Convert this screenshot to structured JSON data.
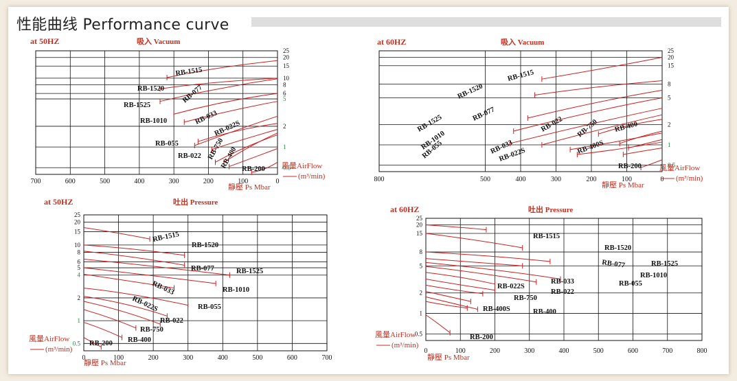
{
  "page": {
    "title": "性能曲线 Performance curve"
  },
  "colors": {
    "curve": "#cc1f1f",
    "grid": "#111111",
    "freq_label": "#c23020",
    "mode_label": "#c23020",
    "green_text": "#1b8a3c",
    "red_text": "#c23020",
    "model_label": "#111111"
  },
  "chart_data": [
    {
      "id": "vac50",
      "type": "line",
      "freq_label": "at 50HZ",
      "mode_label": "吸入 Vacuum",
      "x_scale": "linear-reversed",
      "xlim": [
        0,
        700
      ],
      "x_ticks": [
        "700",
        "600",
        "500",
        "400",
        "300",
        "200",
        "100",
        "0"
      ],
      "y_scale": "log",
      "ylim": [
        0.4,
        25
      ],
      "y_ticks_black": [
        "25",
        "20",
        "15",
        "10",
        "8",
        "6",
        "2"
      ],
      "y_ticks_green": [
        "5",
        "1",
        "0.5"
      ],
      "airflow_label": "風量AirFlow",
      "airflow_unit": "(m³/min)",
      "pressure_label": "靜壓 Ps Mbar",
      "series": [
        {
          "name": "RB-1515",
          "points": [
            [
              0,
              18
            ],
            [
              180,
              14.5
            ],
            [
              320,
              10.2
            ]
          ]
        },
        {
          "name": "RB-1520",
          "points": [
            [
              0,
              10
            ],
            [
              200,
              8.8
            ],
            [
              340,
              7
            ]
          ]
        },
        {
          "name": "RB-1525",
          "points": [
            [
              0,
              9.8
            ],
            [
              80,
              8.5
            ],
            [
              240,
              6
            ],
            [
              340,
              4.6
            ]
          ]
        },
        {
          "name": "RB-077",
          "points": [
            [
              0,
              6
            ],
            [
              150,
              4.8
            ],
            [
              300,
              3
            ]
          ]
        },
        {
          "name": "RB-1010",
          "points": [
            [
              0,
              4.6
            ],
            [
              130,
              3.5
            ],
            [
              270,
              2.3
            ]
          ]
        },
        {
          "name": "RB-033",
          "points": [
            [
              0,
              2.2
            ],
            [
              120,
              1.8
            ],
            [
              230,
              1.2
            ]
          ]
        },
        {
          "name": "RB-022S",
          "points": [
            [
              0,
              1.8
            ],
            [
              100,
              1.3
            ],
            [
              190,
              0.92
            ]
          ]
        },
        {
          "name": "RB-055",
          "points": [
            [
              0,
              2.8
            ],
            [
              90,
              2.0
            ],
            [
              240,
              1.05
            ]
          ]
        },
        {
          "name": "RB-022",
          "points": [
            [
              0,
              1.5
            ],
            [
              100,
              1.0
            ],
            [
              180,
              0.6
            ]
          ]
        },
        {
          "name": "RB-750",
          "points": [
            [
              0,
              1.6
            ],
            [
              80,
              1.05
            ],
            [
              155,
              0.6
            ]
          ]
        },
        {
          "name": "RB-400",
          "points": [
            [
              0,
              0.95
            ],
            [
              70,
              0.7
            ],
            [
              140,
              0.52
            ]
          ]
        },
        {
          "name": "RB-200",
          "points": [
            [
              0,
              0.6
            ],
            [
              40,
              0.45
            ],
            [
              75,
              0.43
            ]
          ]
        }
      ]
    },
    {
      "id": "vac60",
      "type": "line",
      "freq_label": "at 60HZ",
      "mode_label": "吸入 Vacuum",
      "x_scale": "linear-reversed",
      "xlim": [
        0,
        800
      ],
      "x_ticks": [
        "800",
        "500",
        "400",
        "300",
        "200",
        "100",
        "0"
      ],
      "y_scale": "log",
      "ylim": [
        0.4,
        25
      ],
      "y_ticks_black": [
        "25",
        "20",
        "15",
        "8",
        "5",
        "2"
      ],
      "y_ticks_green": [
        "1",
        "0.5"
      ],
      "airflow_label": "風量AirFlow",
      "airflow_unit": "(m³/min)",
      "pressure_label": "靜壓 Ps Mbar",
      "series": [
        {
          "name": "RB-1515",
          "points": [
            [
              0,
              20
            ],
            [
              150,
              14
            ],
            [
              340,
              9.5
            ]
          ]
        },
        {
          "name": "RB-1520",
          "points": [
            [
              0,
              9
            ],
            [
              200,
              7.3
            ],
            [
              360,
              5.5
            ]
          ]
        },
        {
          "name": "RB-077",
          "points": [
            [
              0,
              6.5
            ],
            [
              180,
              4.5
            ],
            [
              380,
              2.5
            ]
          ]
        },
        {
          "name": "RB-1525",
          "points": [
            [
              0,
              5
            ],
            [
              200,
              3.2
            ],
            [
              420,
              1.6
            ]
          ]
        },
        {
          "name": "RB-1010",
          "points": [
            [
              0,
              3.5
            ],
            [
              200,
              2.1
            ],
            [
              430,
              1.05
            ]
          ]
        },
        {
          "name": "RB-055",
          "points": [
            [
              0,
              2.8
            ],
            [
              180,
              1.7
            ],
            [
              340,
              1.0
            ]
          ]
        },
        {
          "name": "RB-022",
          "points": [
            [
              0,
              2.4
            ],
            [
              100,
              2.0
            ],
            [
              180,
              1.45
            ]
          ]
        },
        {
          "name": "RB-033",
          "points": [
            [
              0,
              1.5
            ],
            [
              130,
              1.1
            ],
            [
              260,
              0.85
            ]
          ]
        },
        {
          "name": "RB-022S",
          "points": [
            [
              0,
              1.1
            ],
            [
              120,
              0.85
            ],
            [
              240,
              0.72
            ]
          ]
        },
        {
          "name": "RB-750",
          "points": [
            [
              0,
              1.6
            ],
            [
              60,
              1.35
            ],
            [
              120,
              1.05
            ]
          ]
        },
        {
          "name": "RB-400",
          "points": [
            [
              0,
              1.2
            ],
            [
              60,
              1.0
            ],
            [
              95,
              0.9
            ]
          ]
        },
        {
          "name": "RB-400S",
          "points": [
            [
              0,
              0.9
            ],
            [
              60,
              0.8
            ],
            [
              110,
              0.72
            ]
          ]
        },
        {
          "name": "RB-200",
          "points": [
            [
              0,
              0.6
            ],
            [
              30,
              0.52
            ],
            [
              60,
              0.46
            ]
          ]
        }
      ]
    },
    {
      "id": "press50",
      "type": "line",
      "freq_label": "at 50HZ",
      "mode_label": "吐出 Pressure",
      "x_scale": "linear",
      "xlim": [
        0,
        700
      ],
      "x_ticks": [
        "0",
        "100",
        "200",
        "300",
        "400",
        "500",
        "600",
        "700"
      ],
      "y_scale": "log",
      "ylim": [
        0.4,
        25
      ],
      "y_ticks_black": [
        "25",
        "20",
        "15",
        "10",
        "8",
        "6",
        "5",
        "2"
      ],
      "y_ticks_green": [
        "4",
        "1",
        "0.5"
      ],
      "airflow_label": "風量AirFlow",
      "airflow_unit": "(m³/min)",
      "pressure_label": "靜壓 Ps Mbar",
      "series": [
        {
          "name": "RB-1515",
          "points": [
            [
              0,
              17
            ],
            [
              100,
              14.5
            ],
            [
              190,
              12
            ]
          ]
        },
        {
          "name": "RB-1520",
          "points": [
            [
              0,
              10
            ],
            [
              150,
              9
            ],
            [
              290,
              7.3
            ]
          ]
        },
        {
          "name": "RB-077",
          "points": [
            [
              0,
              8.3
            ],
            [
              150,
              7
            ],
            [
              290,
              5.4
            ]
          ]
        },
        {
          "name": "RB-1525",
          "points": [
            [
              0,
              6.5
            ],
            [
              200,
              5.3
            ],
            [
              420,
              4
            ]
          ]
        },
        {
          "name": "RB-1010",
          "points": [
            [
              0,
              5
            ],
            [
              150,
              4.2
            ],
            [
              380,
              3.1
            ]
          ]
        },
        {
          "name": "RB-033",
          "points": [
            [
              0,
              4.1
            ],
            [
              140,
              3.3
            ],
            [
              260,
              2.7
            ]
          ]
        },
        {
          "name": "RB-055",
          "points": [
            [
              0,
              2.7
            ],
            [
              140,
              2.3
            ],
            [
              300,
              1.6
            ]
          ]
        },
        {
          "name": "RB-022S",
          "points": [
            [
              0,
              2.1
            ],
            [
              130,
              1.7
            ],
            [
              240,
              1.15
            ]
          ]
        },
        {
          "name": "RB-022",
          "points": [
            [
              0,
              1.8
            ],
            [
              120,
              1.35
            ],
            [
              220,
              0.9
            ]
          ]
        },
        {
          "name": "RB-750",
          "points": [
            [
              0,
              1.4
            ],
            [
              80,
              1.1
            ],
            [
              150,
              0.8
            ]
          ]
        },
        {
          "name": "RB-400",
          "points": [
            [
              0,
              0.95
            ],
            [
              50,
              0.8
            ],
            [
              110,
              0.6
            ]
          ]
        },
        {
          "name": "RB-200",
          "points": [
            [
              0,
              0.6
            ],
            [
              30,
              0.5
            ],
            [
              50,
              0.45
            ]
          ]
        }
      ]
    },
    {
      "id": "press60",
      "type": "line",
      "freq_label": "at 60HZ",
      "mode_label": "吐出 Pressure",
      "x_scale": "linear",
      "xlim": [
        0,
        800
      ],
      "x_ticks": [
        "0",
        "100",
        "200",
        "300",
        "400",
        "500",
        "600",
        "700",
        "800"
      ],
      "y_scale": "log",
      "ylim": [
        0.4,
        25
      ],
      "y_ticks_black": [
        "25",
        "20",
        "15",
        "8",
        "5",
        "2",
        "1",
        "0.5"
      ],
      "y_ticks_green": [],
      "airflow_label": "風量AirFlow",
      "airflow_unit": "(m³/min)",
      "pressure_label": "靜壓 Ps Mbar",
      "series": [
        {
          "name": "RB-1515",
          "points": [
            [
              0,
              20
            ],
            [
              100,
              18.5
            ],
            [
              175,
              17
            ]
          ]
        },
        {
          "name": "RB-1520",
          "points": [
            [
              0,
              15
            ],
            [
              150,
              12
            ],
            [
              280,
              9.2
            ]
          ]
        },
        {
          "name": "RB-1525",
          "points": [
            [
              0,
              8
            ],
            [
              200,
              7
            ],
            [
              360,
              5.8
            ]
          ]
        },
        {
          "name": "RB-077",
          "points": [
            [
              0,
              6.4
            ],
            [
              150,
              5.6
            ],
            [
              280,
              5
            ]
          ]
        },
        {
          "name": "RB-1010",
          "points": [
            [
              0,
              5.6
            ],
            [
              200,
              4.5
            ],
            [
              390,
              3.2
            ]
          ]
        },
        {
          "name": "RB-055",
          "points": [
            [
              0,
              4.9
            ],
            [
              150,
              4
            ],
            [
              320,
              2.9
            ]
          ]
        },
        {
          "name": "RB-033",
          "points": [
            [
              0,
              4
            ],
            [
              100,
              3.5
            ],
            [
              200,
              2.7
            ]
          ]
        },
        {
          "name": "RB-022",
          "points": [
            [
              0,
              3.2
            ],
            [
              100,
              2.6
            ],
            [
              200,
              2.2
            ]
          ]
        },
        {
          "name": "RB-022S",
          "points": [
            [
              0,
              2.6
            ],
            [
              80,
              2.2
            ],
            [
              165,
              1.95
            ]
          ]
        },
        {
          "name": "RB-750",
          "points": [
            [
              0,
              2.1
            ],
            [
              60,
              1.8
            ],
            [
              130,
              1.5
            ]
          ]
        },
        {
          "name": "RB-400",
          "points": [
            [
              0,
              1.75
            ],
            [
              80,
              1.4
            ],
            [
              150,
              1.15
            ]
          ]
        },
        {
          "name": "RB-400S",
          "points": [
            [
              0,
              1.5
            ],
            [
              60,
              1.3
            ],
            [
              120,
              1.2
            ]
          ]
        },
        {
          "name": "RB-200",
          "points": [
            [
              0,
              0.95
            ],
            [
              30,
              0.75
            ],
            [
              70,
              0.52
            ]
          ]
        }
      ]
    }
  ]
}
